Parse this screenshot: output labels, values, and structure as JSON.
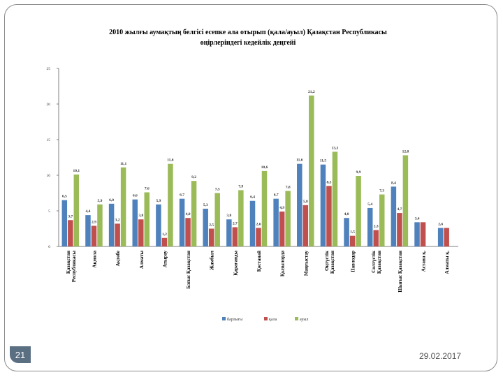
{
  "slide": {
    "number": "21",
    "date": "29.02.2017"
  },
  "chart_data": {
    "type": "bar",
    "title": "2010 жылғы аумақтың белгісі есепке ала отырып (қала/ауыл) Қазақстан Республикасы өңірлеріндегі кедейлік деңгейі",
    "title_lines": [
      "2010 жылғы аумақтың белгісі есепке ала отырып (қала/ауыл) Қазақстан Республикасы",
      "өңірлеріндегі кедейлік деңгейі"
    ],
    "categories": [
      [
        "Қазақстан",
        "Республикасы"
      ],
      [
        "Ақмола"
      ],
      [
        "Ақтөбе"
      ],
      [
        "Алматы"
      ],
      [
        "Атырау"
      ],
      [
        "Батыс Қазақстан"
      ],
      [
        "Жамбыл"
      ],
      [
        "Қарағанды"
      ],
      [
        "Қостанай"
      ],
      [
        "Қызылорда"
      ],
      [
        "Маңғыстау"
      ],
      [
        "Оңтүстік",
        "Қазақстан"
      ],
      [
        "Павлодар"
      ],
      [
        "Солтүстік",
        "Қазақстан"
      ],
      [
        "Шығыс Қазақстан"
      ],
      [
        "Астана қ."
      ],
      [
        "Алматы қ."
      ]
    ],
    "ylim": [
      0,
      25
    ],
    "yticks": [
      0,
      5,
      10,
      15,
      20,
      25
    ],
    "series": [
      {
        "name": "барлығы",
        "color": "#4f81bd",
        "values": [
          6.5,
          4.4,
          6.0,
          6.6,
          5.9,
          6.7,
          5.3,
          3.8,
          6.4,
          6.7,
          11.6,
          11.5,
          4.0,
          5.4,
          8.4,
          3.4,
          2.6
        ],
        "labels": [
          "6,5",
          "4,4",
          "6,0",
          "6,6",
          "5,9",
          "6,7",
          "5,3",
          "3,8",
          "6,4",
          "6,7",
          "11,6",
          "11,5",
          "4,0",
          "5,4",
          "8,4",
          "3,4",
          "2,6"
        ]
      },
      {
        "name": "қала",
        "color": "#c0504d",
        "values": [
          3.7,
          2.9,
          3.2,
          3.8,
          1.2,
          4.0,
          2.5,
          2.7,
          2.6,
          4.9,
          5.8,
          8.5,
          1.5,
          2.3,
          4.7,
          3.4,
          2.6
        ],
        "labels": [
          "3,7",
          "2,9",
          "3,2",
          "3,8",
          "1,2",
          "4,0",
          "2,5",
          "2,7",
          "2,6",
          "4,9",
          "5,8",
          "8,5",
          "1,5",
          "2,3",
          "4,7",
          "",
          ""
        ]
      },
      {
        "name": "ауыл",
        "color": "#9bbb59",
        "values": [
          10.1,
          5.9,
          11.1,
          7.6,
          11.6,
          9.2,
          7.5,
          7.9,
          10.6,
          7.8,
          21.2,
          13.3,
          9.9,
          7.3,
          12.8,
          null,
          null
        ],
        "labels": [
          "10,1",
          "5,9",
          "11,1",
          "7,6",
          "11,6",
          "9,2",
          "7,5",
          "7,9",
          "10,6",
          "7,8",
          "21,2",
          "13,3",
          "9,9",
          "7,3",
          "12,8",
          "",
          ""
        ]
      }
    ],
    "legend": {
      "placement": "bottom-center",
      "labels": [
        "барлығы",
        "қала",
        "ауыл"
      ]
    },
    "gridlines": false
  }
}
